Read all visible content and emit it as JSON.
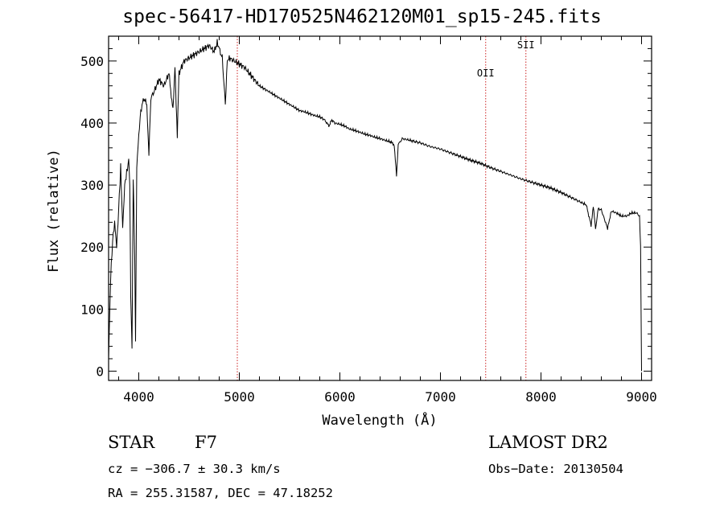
{
  "chart_data": {
    "type": "line",
    "title": "spec-56417-HD170525N462120M01_sp15-245.fits",
    "xlabel": "Wavelength (Å)",
    "ylabel": "Flux (relative)",
    "xlim": [
      3700,
      9100
    ],
    "ylim": [
      -15,
      540
    ],
    "xticks": [
      4000,
      5000,
      6000,
      7000,
      8000,
      9000
    ],
    "yticks": [
      0,
      100,
      200,
      300,
      400,
      500
    ],
    "grid": false,
    "line_color": "#000000",
    "marker_color": "#cc2222",
    "markers": [
      {
        "label": "",
        "x": 4980
      },
      {
        "label": "OII",
        "x": 7450
      },
      {
        "label": "SII",
        "x": 7850
      }
    ],
    "series": [
      {
        "x": [
          3700,
          3720,
          3740,
          3760,
          3780,
          3800,
          3820,
          3840,
          3860,
          3880,
          3900,
          3910,
          3920,
          3933,
          3945,
          3960,
          3968,
          3980,
          4000,
          4020,
          4050,
          4080,
          4101,
          4120,
          4150,
          4200,
          4250,
          4300,
          4340,
          4360,
          4383,
          4400,
          4450,
          4500,
          4550,
          4600,
          4650,
          4700,
          4750,
          4780,
          4800,
          4830,
          4861,
          4880,
          4900,
          4950,
          5000,
          5050,
          5100,
          5150,
          5200,
          5250,
          5300,
          5350,
          5400,
          5450,
          5500,
          5550,
          5600,
          5650,
          5700,
          5750,
          5800,
          5850,
          5890,
          5920,
          5950,
          6000,
          6050,
          6100,
          6150,
          6200,
          6250,
          6300,
          6350,
          6400,
          6450,
          6500,
          6540,
          6563,
          6580,
          6620,
          6700,
          6800,
          6900,
          7000,
          7100,
          7200,
          7300,
          7400,
          7500,
          7600,
          7700,
          7800,
          7900,
          8000,
          8100,
          8200,
          8300,
          8400,
          8450,
          8498,
          8520,
          8542,
          8570,
          8600,
          8662,
          8700,
          8750,
          8800,
          8850,
          8900,
          8950,
          8980,
          8990,
          9000
        ],
        "y": [
          20,
          150,
          210,
          240,
          200,
          260,
          330,
          230,
          300,
          320,
          340,
          300,
          120,
          40,
          310,
          180,
          50,
          330,
          380,
          420,
          440,
          430,
          350,
          440,
          450,
          470,
          460,
          480,
          420,
          490,
          380,
          480,
          500,
          505,
          510,
          515,
          520,
          525,
          515,
          530,
          520,
          505,
          430,
          500,
          505,
          500,
          495,
          490,
          480,
          470,
          460,
          455,
          450,
          445,
          440,
          435,
          430,
          425,
          420,
          418,
          415,
          412,
          410,
          405,
          395,
          405,
          400,
          398,
          395,
          390,
          388,
          385,
          382,
          380,
          377,
          375,
          372,
          370,
          365,
          315,
          365,
          375,
          372,
          368,
          362,
          358,
          352,
          346,
          340,
          335,
          328,
          322,
          316,
          310,
          305,
          300,
          295,
          288,
          280,
          272,
          268,
          235,
          265,
          230,
          262,
          260,
          230,
          258,
          255,
          250,
          250,
          255,
          255,
          250,
          200,
          0
        ]
      }
    ]
  },
  "info": {
    "object_type": "STAR",
    "subclass": "F7",
    "survey": "LAMOST DR2",
    "cz": "cz = −306.7 ± 30.3 km/s",
    "obs_date": "Obs−Date: 20130504",
    "coords": "RA = 255.31587, DEC =  47.18252"
  }
}
